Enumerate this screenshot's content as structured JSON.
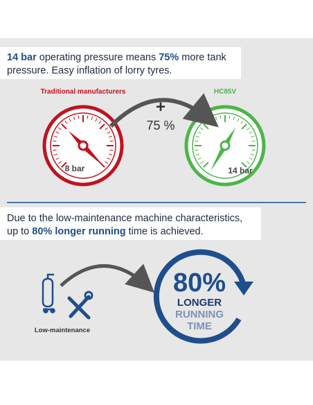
{
  "pressure_panel": {
    "headline": [
      "14 bar",
      " operating pressure means ",
      "75%",
      " more tank",
      "pressure. Easy inflation of lorry tyres."
    ],
    "left_gauge": {
      "label": "Traditional manufacturers",
      "reading": "8 bar"
    },
    "right_gauge": {
      "label": "HC85V",
      "reading": "14 bar"
    },
    "plus": "+",
    "increase": "75 %"
  },
  "runtime_panel": {
    "headline": [
      "Due to the low-maintenance machine characteristics,",
      "up to ",
      "80% longer running",
      " time is achieved."
    ],
    "icon_label": "Low-maintenance",
    "badge": {
      "percent": "80%",
      "line1": "LONGER",
      "line2": "RUNNING",
      "line3": "TIME"
    }
  }
}
